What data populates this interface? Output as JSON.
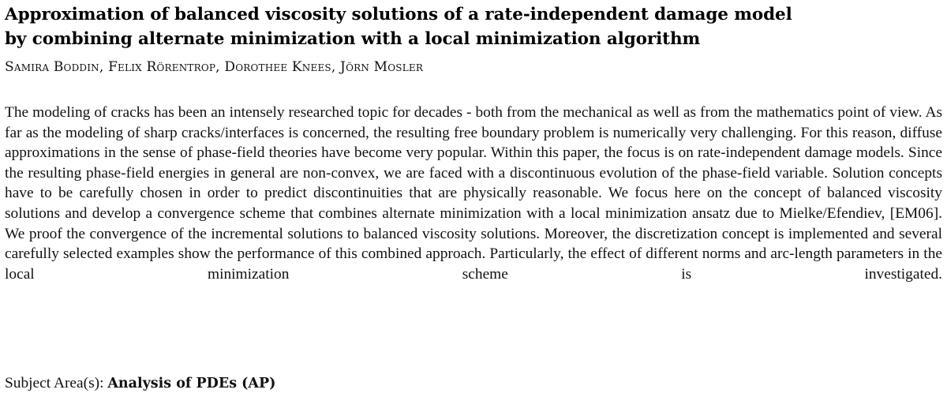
{
  "paper": {
    "title_line1": "Approximation of balanced viscosity solutions of a rate-independent damage model",
    "title_line2": "by combining alternate minimization with a local minimization algorithm",
    "authors": "Samira Boddin, Felix Rörentrop, Dorothee Knees, Jörn Mosler",
    "abstract": "The modeling of cracks has been an intensely researched topic for decades - both from the mechanical as well as from the mathematics point of view. As far as the modeling of sharp cracks/interfaces is concerned, the resulting free boundary problem is numerically very challenging. For this reason, diffuse approximations in the sense of phase-field theories have become very popular. Within this paper, the focus is on rate-independent damage models. Since the resulting phase-field energies in general are non-convex, we are faced with a discontinuous evolution of the phase-field variable. Solution concepts have to be carefully chosen in order to predict discontinuities that are physically reasonable. We focus here on the concept of balanced viscosity solutions and develop a convergence scheme that combines alternate minimization with a local minimization ansatz due to Mielke/Efendiev, [EM06]. We proof the convergence of the incremental solutions to balanced viscosity solutions. Moreover, the discretization concept is implemented and several carefully selected examples show the performance of this combined approach. Particularly, the effect of different norms and arc-length parameters in the local minimization scheme is investigated.",
    "subject_label": "Subject Area(s):",
    "subject_value": "Analysis of PDEs (AP)"
  }
}
